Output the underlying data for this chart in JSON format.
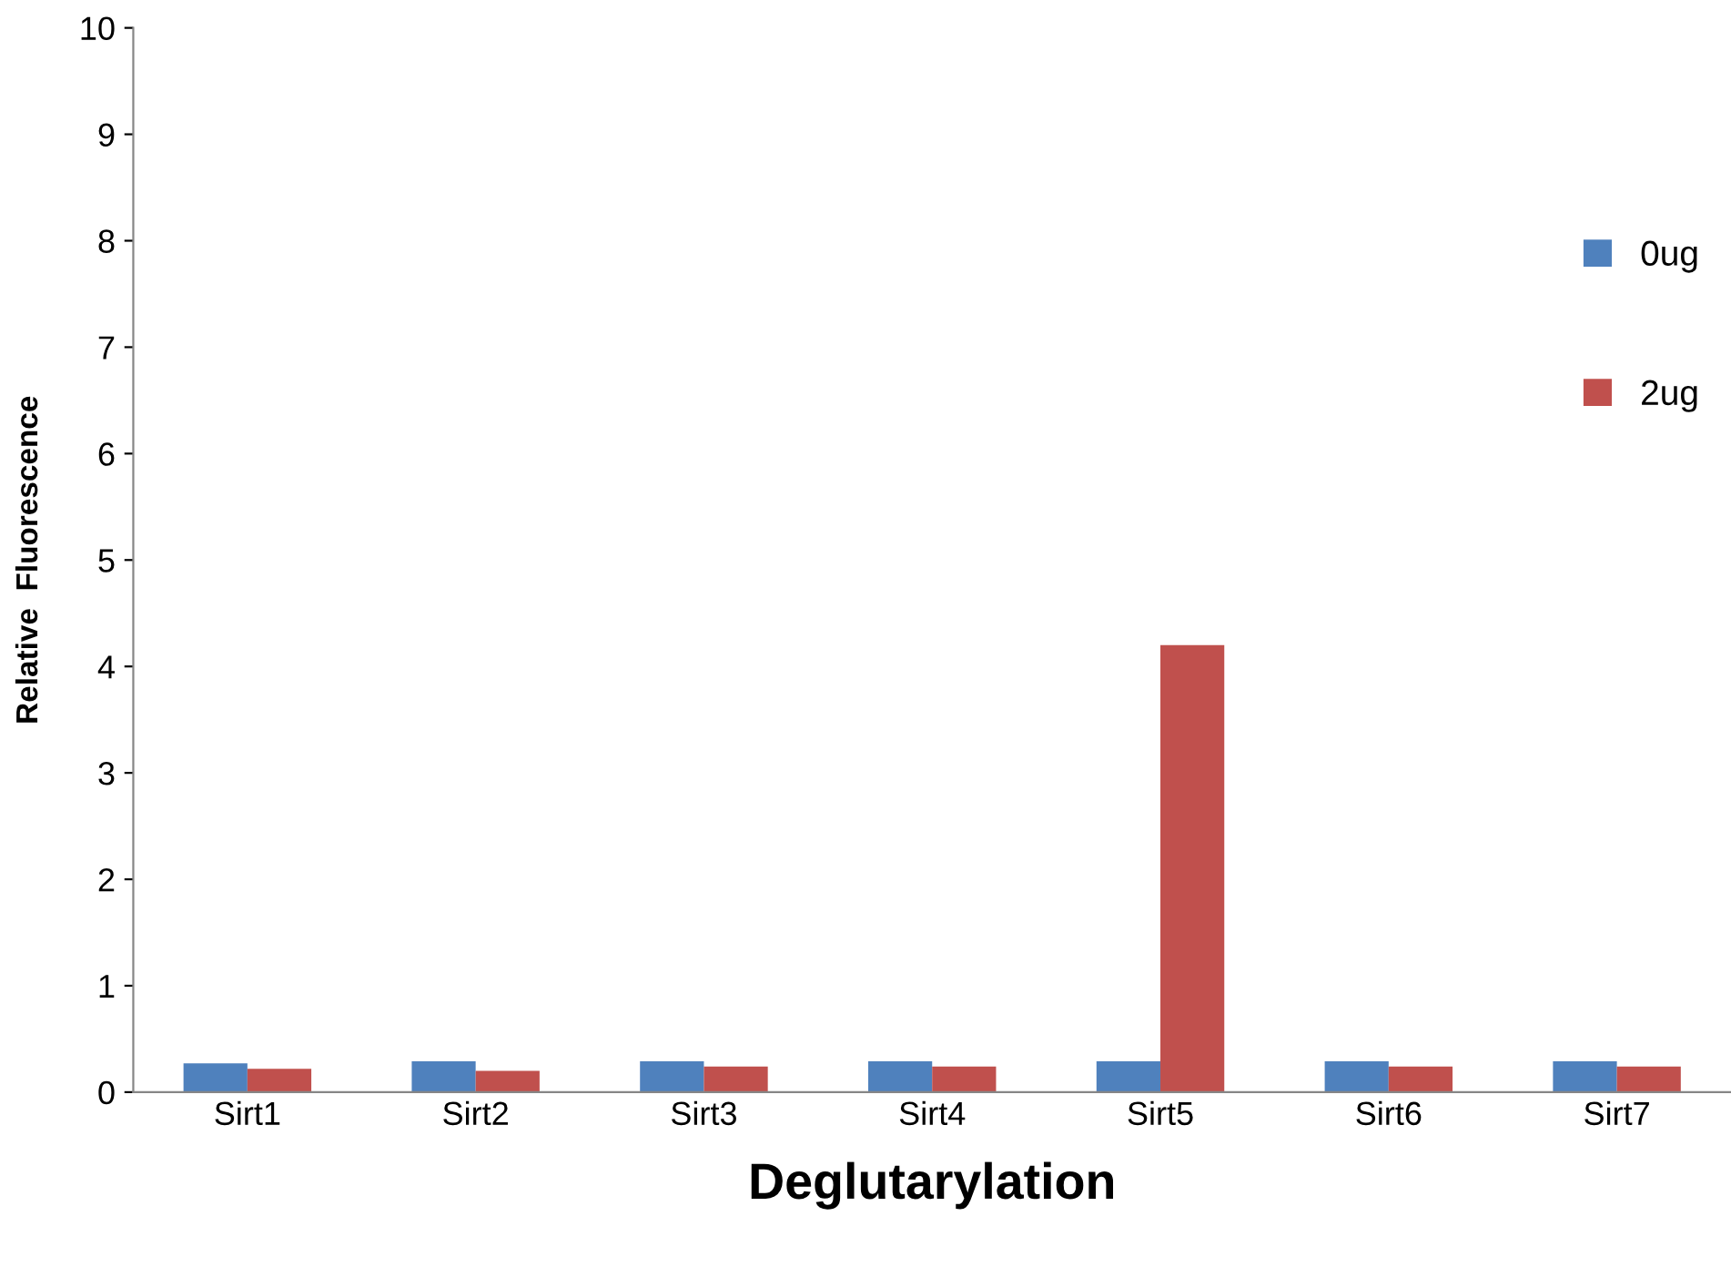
{
  "chart_data": {
    "type": "bar",
    "xlabel": "Deglutarylation",
    "ylabel": "Relative  Fluorescence",
    "categories": [
      "Sirt1",
      "Sirt2",
      "Sirt3",
      "Sirt4",
      "Sirt5",
      "Sirt6",
      "Sirt7"
    ],
    "series": [
      {
        "name": "0ug",
        "color": "#4f81bd",
        "values": [
          0.27,
          0.29,
          0.29,
          0.29,
          0.29,
          0.29,
          0.29
        ]
      },
      {
        "name": "2ug",
        "color": "#c0504d",
        "values": [
          0.22,
          0.2,
          0.24,
          0.24,
          4.2,
          0.24,
          0.24
        ]
      }
    ],
    "ylim": [
      0,
      10
    ],
    "yticks": [
      0,
      1,
      2,
      3,
      4,
      5,
      6,
      7,
      8,
      9,
      10
    ],
    "grid": false,
    "legend": "right"
  }
}
